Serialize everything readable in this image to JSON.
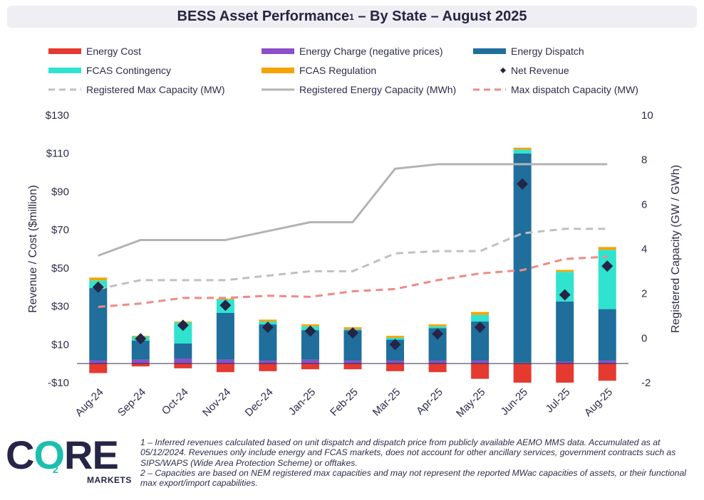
{
  "title": {
    "main": "BESS Asset Performance",
    "sup": "1",
    "rest": " – By State – August 2025"
  },
  "chart_data": {
    "type": "bar",
    "stacked": true,
    "categories": [
      "Aug-24",
      "Sep-24",
      "Oct-24",
      "Nov-24",
      "Dec-24",
      "Jan-25",
      "Feb-25",
      "Mar-25",
      "Apr-25",
      "May-25",
      "Jun-25",
      "Jul-25",
      "Aug-25"
    ],
    "bar_series": [
      {
        "name": "Energy Cost",
        "color": "#e53a30",
        "values": [
          -5,
          -1.5,
          -2.5,
          -4.5,
          -4,
          -3,
          -3,
          -4,
          -4.5,
          -8,
          -10,
          -10,
          -9
        ]
      },
      {
        "name": "Energy Charge (negative prices)",
        "color": "#8b4fc8",
        "values": [
          1.5,
          2,
          2.5,
          2,
          1.5,
          2,
          1.5,
          1.5,
          1.5,
          1.5,
          0.5,
          1,
          1.5
        ]
      },
      {
        "name": "Energy Dispatch",
        "color": "#1f6e9c",
        "values": [
          38,
          10,
          8,
          24.5,
          19,
          15.5,
          16,
          11,
          17,
          20.5,
          109.5,
          31.5,
          27
        ]
      },
      {
        "name": "FCAS Contingency",
        "color": "#2fe3cf",
        "values": [
          4,
          2,
          11,
          7,
          1.5,
          2,
          0.5,
          1,
          1,
          3.5,
          2,
          15.5,
          31
        ]
      },
      {
        "name": "FCAS Regulation",
        "color": "#f5a300",
        "values": [
          1.5,
          0.5,
          0.5,
          0.5,
          1,
          1,
          1,
          1,
          1,
          1.5,
          1,
          1,
          1.5
        ]
      }
    ],
    "net_revenue": {
      "name": "Net Revenue",
      "color": "#252547",
      "values": [
        40,
        13,
        20,
        30.5,
        19,
        17,
        16,
        10,
        15.5,
        19,
        94,
        36,
        51
      ]
    },
    "line_series": [
      {
        "name": "Registered Max Capacity (MW)",
        "color": "#c0c0c0",
        "style": "dashed",
        "axis": "right",
        "values": [
          2.2,
          2.6,
          2.6,
          2.6,
          2.8,
          3.0,
          3.0,
          3.8,
          3.9,
          3.9,
          4.7,
          4.9,
          4.9
        ]
      },
      {
        "name": "Registered Energy Capacity (MWh)",
        "color": "#b3b3b3",
        "style": "solid",
        "axis": "right",
        "values": [
          3.7,
          4.4,
          4.4,
          4.4,
          4.8,
          5.2,
          5.2,
          7.6,
          7.8,
          7.8,
          7.8,
          7.8,
          7.8
        ]
      },
      {
        "name": "Max dispatch Capacity (MW)",
        "color": "#ef8a84",
        "style": "dashed",
        "axis": "right",
        "values": [
          1.4,
          1.55,
          1.8,
          1.8,
          1.9,
          1.85,
          2.1,
          2.2,
          2.6,
          2.9,
          3.05,
          3.55,
          3.65
        ]
      }
    ],
    "legend": [
      {
        "name": "Energy Cost",
        "kind": "rect",
        "color": "#e53a30"
      },
      {
        "name": "Energy Charge (negative prices)",
        "kind": "rect",
        "color": "#8b4fc8"
      },
      {
        "name": "Energy Dispatch",
        "kind": "rect",
        "color": "#1f6e9c"
      },
      {
        "name": "FCAS Contingency",
        "kind": "rect",
        "color": "#2fe3cf"
      },
      {
        "name": "FCAS Regulation",
        "kind": "rect",
        "color": "#f5a300"
      },
      {
        "name": "Net Revenue",
        "kind": "diamond",
        "color": "#252547"
      },
      {
        "name": "Registered Max Capacity (MW)",
        "kind": "dash",
        "color": "#c0c0c0"
      },
      {
        "name": "Registered Energy Capacity (MWh)",
        "kind": "line",
        "color": "#b3b3b3"
      },
      {
        "name": "Max dispatch Capacity (MW)",
        "kind": "dash",
        "color": "#ef8a84"
      }
    ],
    "y_left": {
      "label": "Revenue / Cost ($million)",
      "min": -10,
      "max": 130,
      "ticks": [
        -10,
        10,
        30,
        50,
        70,
        90,
        110,
        130
      ],
      "tick_labels": [
        "-$10",
        "$10",
        "$30",
        "$50",
        "$70",
        "$90",
        "$110",
        "$130"
      ]
    },
    "y_right": {
      "label": "Registered Capacity (GW / GWh)",
      "min": -2,
      "max": 10,
      "ticks": [
        -2,
        0,
        2,
        4,
        6,
        8,
        10
      ],
      "tick_labels": [
        "-2",
        "0",
        "2",
        "4",
        "6",
        "8",
        "10"
      ]
    },
    "grid": false
  },
  "logo": {
    "word_a": "C",
    "word_o": "O",
    "word_b": "RE",
    "o2": "2",
    "sub": "MARKETS"
  },
  "footnotes": [
    "1 – Inferred revenues calculated based on unit dispatch and dispatch price from publicly available AEMO MMS data. Accumulated as at 05/12/2024. Revenues only include energy and FCAS markets, does not account for other ancillary services, government contracts such as SIPS/WAPS (Wide Area Protection Scheme) or offtakes.",
    "2 – Capacities are based on NEM registered max capacities and may not represent the reported MWac capacities of assets, or their functional max export/import capabilities."
  ]
}
